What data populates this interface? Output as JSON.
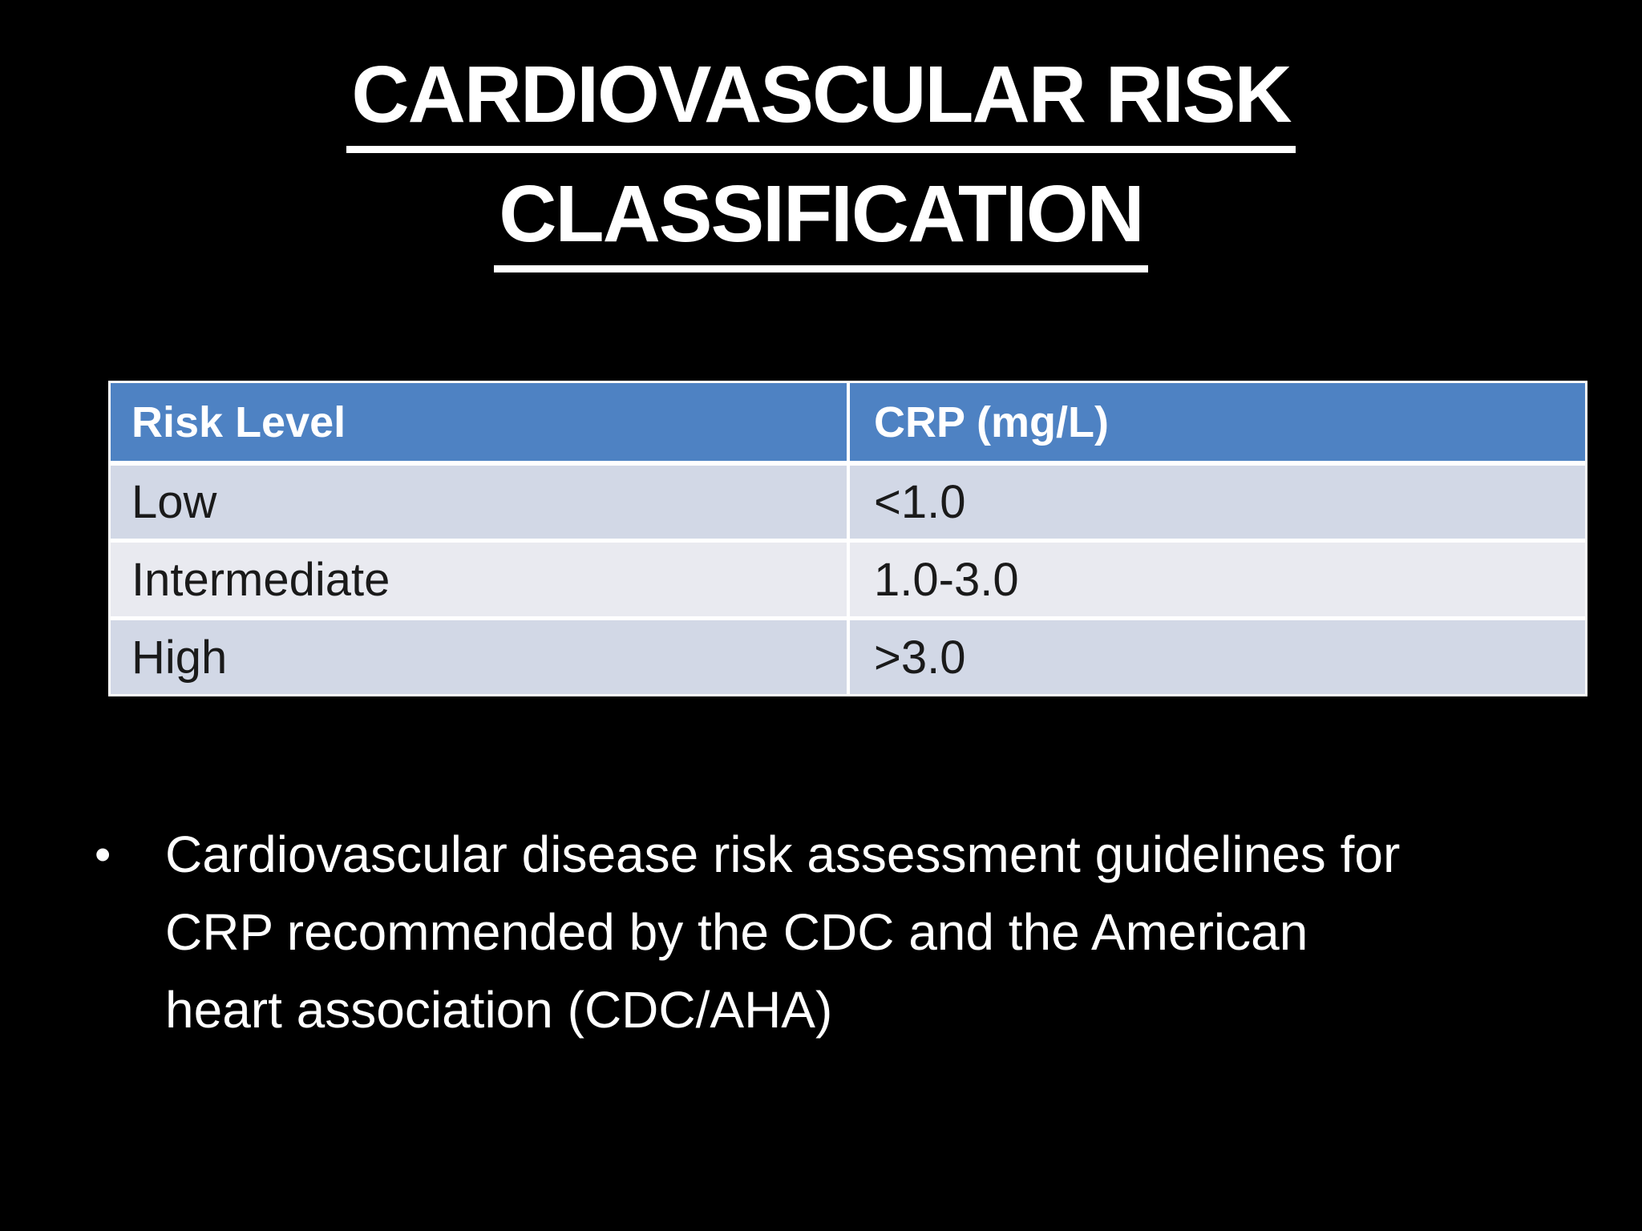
{
  "slide": {
    "title": {
      "line1": "CARDIOVASCULAR RISK",
      "line2": "CLASSIFICATION"
    },
    "table": {
      "headers": [
        "Risk Level",
        "CRP (mg/L)"
      ],
      "rows": [
        {
          "risk_level": "Low",
          "crp": "<1.0"
        },
        {
          "risk_level": "Intermediate",
          "crp": "1.0-3.0"
        },
        {
          "risk_level": "High",
          "crp": ">3.0"
        }
      ]
    },
    "bullet": {
      "marker": "•",
      "lines": [
        "Cardiovascular disease risk assessment guidelines for",
        "CRP recommended by the CDC and the American",
        "heart association (CDC/AHA)"
      ],
      "text": "Cardiovascular disease risk assessment guidelines for CRP recommended by the CDC and the American heart association (CDC/AHA)"
    },
    "colors": {
      "background": "#000000",
      "title_text": "#ffffff",
      "body_text": "#ffffff",
      "table_header_bg": "#4e82c3",
      "table_header_text": "#ffffff",
      "row_odd_bg": "#d2d8e6",
      "row_even_bg": "#e9eaf0",
      "row_text": "#1a1a1a",
      "divider": "#ffffff"
    }
  }
}
